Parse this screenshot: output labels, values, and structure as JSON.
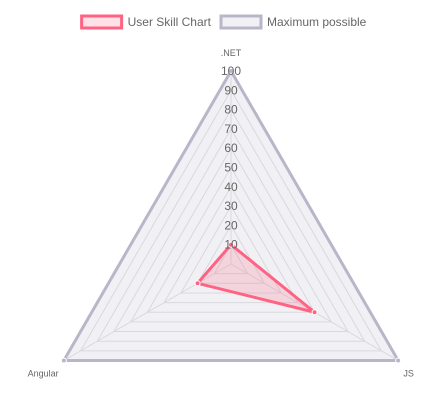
{
  "chart_data": {
    "type": "radar",
    "categories": [
      ".NET",
      "JS",
      "Angular"
    ],
    "series": [
      {
        "name": "User Skill Chart",
        "values": [
          10,
          50,
          20
        ],
        "color": "#ff6384",
        "fill": "rgba(255,99,132,0.2)"
      },
      {
        "name": "Maximum possible",
        "values": [
          100,
          100,
          100
        ],
        "color": "#b9b6ca",
        "fill": "rgba(185,182,202,0.2)"
      }
    ],
    "scale": {
      "min": 0,
      "max": 100,
      "step": 10
    },
    "tick_labels": [
      "10",
      "20",
      "30",
      "40",
      "50",
      "60",
      "70",
      "80",
      "90",
      "100"
    ],
    "grid": true,
    "legend_position": "top"
  }
}
